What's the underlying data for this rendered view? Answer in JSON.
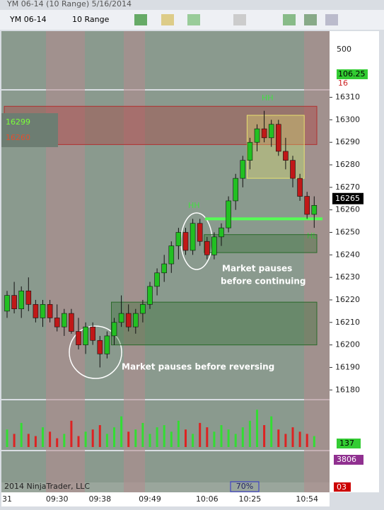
{
  "chart_data": {
    "type": "candlestick",
    "window_title": "YM 06-14 (10 Range) 5/16/2014",
    "toolbar": {
      "instrument": "YM 06-14",
      "period": "10 Range"
    },
    "categories": [
      "31",
      null,
      null,
      null,
      null,
      null,
      null,
      "09:30",
      null,
      null,
      null,
      null,
      null,
      "09:38",
      null,
      null,
      null,
      null,
      null,
      null,
      "09:49",
      null,
      null,
      null,
      null,
      null,
      null,
      null,
      "10:06",
      null,
      null,
      null,
      null,
      null,
      "10:25",
      null,
      null,
      null,
      null,
      null,
      null,
      null,
      "10:54",
      null
    ],
    "ohlc": [
      [
        16215,
        16224,
        16212,
        16222
      ],
      [
        16222,
        16228,
        16214,
        16216
      ],
      [
        16216,
        16226,
        16212,
        16224
      ],
      [
        16224,
        16230,
        16215,
        16218
      ],
      [
        16218,
        16220,
        16210,
        16212
      ],
      [
        16212,
        16220,
        16208,
        16218
      ],
      [
        16218,
        16220,
        16210,
        16212
      ],
      [
        16212,
        16218,
        16206,
        16208
      ],
      [
        16208,
        16216,
        16204,
        16214
      ],
      [
        16214,
        16216,
        16205,
        16206
      ],
      [
        16206,
        16212,
        16198,
        16200
      ],
      [
        16200,
        16210,
        16196,
        16208
      ],
      [
        16208,
        16210,
        16200,
        16202
      ],
      [
        16202,
        16204,
        16190,
        16196
      ],
      [
        16196,
        16206,
        16194,
        16204
      ],
      [
        16204,
        16212,
        16200,
        16210
      ],
      [
        16210,
        16222,
        16208,
        16214
      ],
      [
        16214,
        16218,
        16206,
        16208
      ],
      [
        16208,
        16216,
        16205,
        16214
      ],
      [
        16214,
        16220,
        16210,
        16218
      ],
      [
        16218,
        16228,
        16216,
        16226
      ],
      [
        16226,
        16234,
        16222,
        16232
      ],
      [
        16232,
        16240,
        16228,
        16236
      ],
      [
        16236,
        16246,
        16232,
        16244
      ],
      [
        16244,
        16252,
        16238,
        16250
      ],
      [
        16250,
        16252,
        16240,
        16242
      ],
      [
        16242,
        16256,
        16240,
        16254
      ],
      [
        16254,
        16256,
        16244,
        16246
      ],
      [
        16246,
        16248,
        16238,
        16240
      ],
      [
        16240,
        16250,
        16238,
        16248
      ],
      [
        16248,
        16254,
        16244,
        16252
      ],
      [
        16252,
        16266,
        16250,
        16264
      ],
      [
        16264,
        16276,
        16260,
        16274
      ],
      [
        16274,
        16284,
        16270,
        16282
      ],
      [
        16282,
        16292,
        16278,
        16290
      ],
      [
        16290,
        16298,
        16286,
        16296
      ],
      [
        16296,
        16304,
        16290,
        16292
      ],
      [
        16292,
        16300,
        16288,
        16298
      ],
      [
        16298,
        16300,
        16284,
        16286
      ],
      [
        16286,
        16292,
        16278,
        16282
      ],
      [
        16282,
        16284,
        16270,
        16274
      ],
      [
        16274,
        16276,
        16264,
        16266
      ],
      [
        16266,
        16268,
        16256,
        16258
      ],
      [
        16258,
        16266,
        16252,
        16262
      ]
    ],
    "up_color": "#22c022",
    "down_color": "#c01818",
    "ylim": [
      16176,
      16313
    ],
    "yticks": [
      16310,
      16300,
      16290,
      16280,
      16270,
      16260,
      16250,
      16240,
      16230,
      16220,
      16210,
      16200,
      16190,
      16180
    ],
    "last_price": 16265,
    "overlay_labels": [
      {
        "text": "16299",
        "color": "#7cff3a"
      },
      {
        "text": "16260",
        "color": "#e05030"
      }
    ],
    "zones": [
      {
        "top": 16306,
        "bottom": 16289,
        "start": 0,
        "color": "#b03030"
      },
      {
        "top": 16219,
        "bottom": 16200,
        "start": 15,
        "color": "#2a6a2a"
      },
      {
        "top": 16249,
        "bottom": 16241,
        "start": 28,
        "color": "#2a6a2a"
      },
      {
        "top": 16302,
        "bottom": 16274,
        "start": 34,
        "color": "#e8e070"
      }
    ],
    "support_level": 16256,
    "annotations": [
      "Market pauses before reversing",
      "Market pauses",
      "before continuing",
      "HH",
      "HH",
      "HL"
    ],
    "top_panel": {
      "tick": 500,
      "value_label": "106.25",
      "small_label": "16"
    },
    "volume": {
      "values": [
        40,
        30,
        55,
        30,
        25,
        45,
        35,
        20,
        30,
        60,
        25,
        35,
        40,
        50,
        30,
        45,
        70,
        35,
        40,
        55,
        30,
        45,
        50,
        35,
        60,
        40,
        30,
        55,
        45,
        35,
        50,
        40,
        30,
        45,
        60,
        85,
        50,
        70,
        40,
        30,
        45,
        35,
        30,
        25
      ],
      "ylim": [
        0,
        100
      ],
      "value_label": "137"
    },
    "lower_panel": {
      "value_label": "3806",
      "small_label": "03",
      "percent": "70%"
    },
    "copyright": "2014 NinjaTrader, LLC"
  }
}
